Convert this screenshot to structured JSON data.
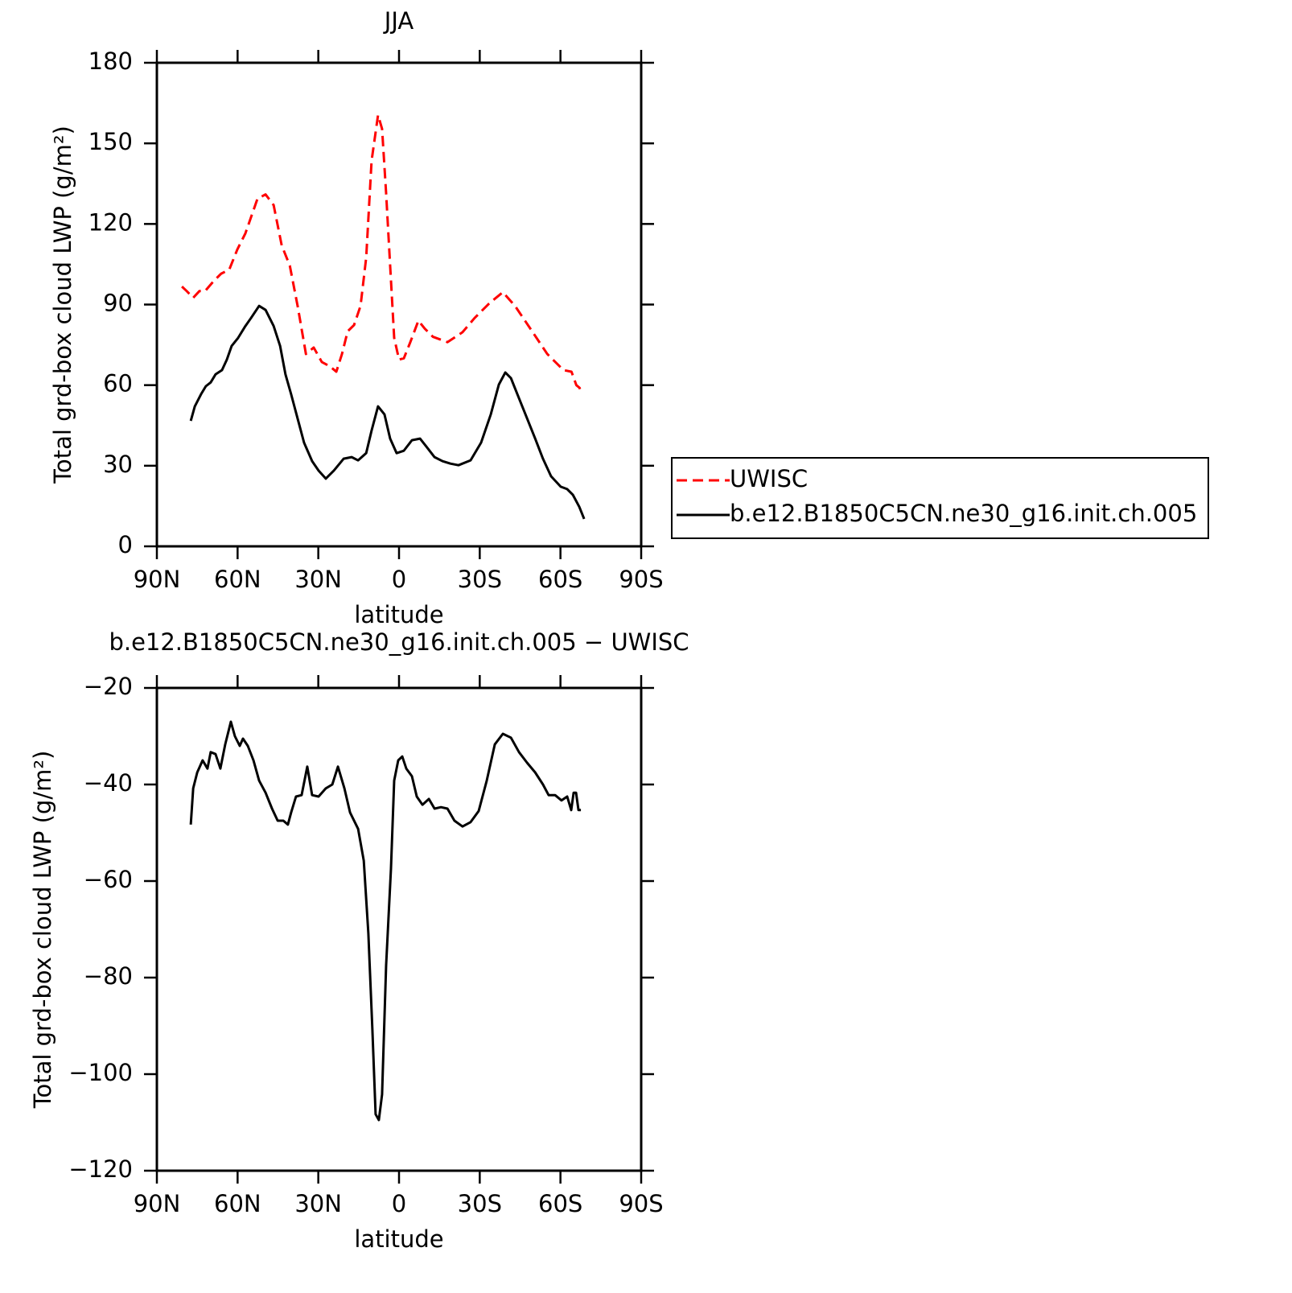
{
  "chart_data": [
    {
      "type": "line",
      "title": "JJA",
      "xlabel": "latitude",
      "ylabel": "Total grd-box cloud LWP (g/m²)",
      "xlim": [
        90,
        -90
      ],
      "xticks": [
        {
          "value": 90,
          "label": "90N"
        },
        {
          "value": 60,
          "label": "60N"
        },
        {
          "value": 30,
          "label": "30N"
        },
        0,
        {
          "value": -30,
          "label": "30S"
        },
        {
          "value": -60,
          "label": "60S"
        },
        {
          "value": -90,
          "label": "90S"
        }
      ],
      "ylim": [
        0,
        180
      ],
      "yticks": [
        0,
        30,
        60,
        90,
        120,
        150,
        180
      ],
      "legend": "right",
      "series": [
        {
          "name": "UWISC",
          "color": "#ff0000",
          "dashed": true,
          "x": [
            80.7,
            78.9,
            76.5,
            74.2,
            72.1,
            69.1,
            66.1,
            63.1,
            60.1,
            57.1,
            52.6,
            49.6,
            46.6,
            43.6,
            40.6,
            37.6,
            34.6,
            31.7,
            28.7,
            25.7,
            23.3,
            21.2,
            19.1,
            16.7,
            14.3,
            12.2,
            10.2,
            7.8,
            6.3,
            4.8,
            3.3,
            1.8,
            0.0,
            -1.8,
            -4.2,
            -7.2,
            -9.6,
            -12.6,
            -18.0,
            -23.6,
            -28.1,
            -33.5,
            -38.6,
            -43.1,
            -49.1,
            -55.1,
            -61.1,
            -64.1,
            -65.9,
            -67.1,
            -67.6
          ],
          "values": [
            96.7,
            95,
            92.5,
            95,
            95,
            98.5,
            101.5,
            103,
            110.5,
            116.5,
            129.4,
            131,
            127,
            112,
            104.5,
            89,
            71.6,
            74,
            68.6,
            67,
            65,
            71.6,
            80,
            82.4,
            89.5,
            107.5,
            143.5,
            160.5,
            155.4,
            131.5,
            104.5,
            77.6,
            69.5,
            70,
            76,
            84,
            81,
            78,
            76,
            79.7,
            85,
            90.4,
            94.6,
            89.5,
            80.6,
            71.6,
            65.6,
            65,
            60,
            59,
            57.5
          ]
        },
        {
          "name": "b.e12.B1850C5CN.ne30_g16.init.ch.005",
          "color": "#000000",
          "dashed": false,
          "x": [
            77.4,
            75.9,
            73.6,
            71.8,
            70.0,
            68.2,
            65.8,
            64.0,
            62.2,
            59.8,
            57.1,
            55.0,
            52.0,
            49.6,
            46.6,
            44.2,
            42.2,
            40.1,
            37.7,
            35.3,
            32.3,
            29.9,
            27.2,
            24.2,
            20.6,
            17.6,
            15.2,
            12.2,
            10.2,
            7.8,
            5.4,
            3.3,
            0.9,
            -1.8,
            -4.8,
            -7.8,
            -10.2,
            -13.2,
            -16.2,
            -19.1,
            -22.1,
            -26.6,
            -30.5,
            -34.1,
            -37.1,
            -39.5,
            -41.6,
            -44.6,
            -47.6,
            -50.6,
            -53.5,
            -56.5,
            -60.1,
            -62.5,
            -64.6,
            -67.0,
            -68.8
          ],
          "values": [
            46.7,
            52.1,
            56.6,
            59.6,
            61,
            64,
            65.6,
            69.5,
            74.6,
            77.6,
            82,
            85,
            89.5,
            88,
            82,
            74.6,
            64,
            56.6,
            47.6,
            38.6,
            31.7,
            28.2,
            25.2,
            28.2,
            32.6,
            33.2,
            32,
            34.7,
            43.1,
            52.1,
            49.1,
            40.1,
            34.7,
            35.6,
            39.5,
            40.1,
            37.1,
            33.2,
            31.7,
            30.8,
            30.2,
            32,
            38.6,
            49.1,
            60.2,
            64.7,
            62.6,
            55.1,
            47.6,
            40.1,
            32.6,
            26.1,
            22.2,
            21.3,
            19.2,
            14.7,
            10.2
          ]
        }
      ]
    },
    {
      "type": "line",
      "title": "b.e12.B1850C5CN.ne30_g16.init.ch.005 − UWISC",
      "xlabel": "latitude",
      "ylabel": "Total grd-box cloud LWP (g/m²)",
      "xlim": [
        90,
        -90
      ],
      "xticks": [
        {
          "value": 90,
          "label": "90N"
        },
        {
          "value": 60,
          "label": "60N"
        },
        {
          "value": 30,
          "label": "30N"
        },
        0,
        {
          "value": -30,
          "label": "30S"
        },
        {
          "value": -60,
          "label": "60S"
        },
        {
          "value": -90,
          "label": "90S"
        }
      ],
      "ylim": [
        -120,
        -20
      ],
      "yticks": [
        {
          "value": -120,
          "label": "−120"
        },
        {
          "value": -100,
          "label": "−100"
        },
        {
          "value": -80,
          "label": "−80"
        },
        {
          "value": -60,
          "label": "−60"
        },
        {
          "value": -40,
          "label": "−40"
        },
        {
          "value": -20,
          "label": "−20"
        }
      ],
      "series": [
        {
          "color": "#000000",
          "dashed": false,
          "x": [
            77.4,
            76.5,
            75.0,
            73.0,
            71.2,
            70.0,
            68.2,
            66.4,
            64.6,
            62.5,
            61.0,
            59.2,
            58.0,
            56.2,
            54.1,
            52.0,
            49.6,
            47.2,
            45.1,
            43.0,
            41.3,
            40.1,
            38.3,
            36.2,
            34.1,
            32.3,
            29.9,
            27.2,
            24.8,
            22.7,
            20.3,
            18.2,
            15.2,
            13.1,
            11.4,
            9.9,
            8.7,
            7.5,
            6.3,
            4.8,
            3.0,
            1.8,
            0.3,
            -1.2,
            -2.7,
            -4.8,
            -6.6,
            -8.7,
            -11.1,
            -13.2,
            -15.6,
            -18.0,
            -20.6,
            -23.6,
            -26.6,
            -29.6,
            -32.6,
            -35.6,
            -38.6,
            -41.6,
            -44.6,
            -47.6,
            -50.6,
            -53.5,
            -55.6,
            -58.0,
            -60.4,
            -62.5,
            -64.0,
            -64.9,
            -65.8,
            -66.7,
            -67.6
          ],
          "values": [
            -48.3,
            -40.8,
            -37.5,
            -35,
            -36.7,
            -33.3,
            -33.7,
            -36.7,
            -31.7,
            -27,
            -30,
            -32,
            -30.5,
            -32,
            -35,
            -39.2,
            -41.7,
            -45,
            -47.5,
            -47.5,
            -48.3,
            -45.8,
            -42.5,
            -42.2,
            -36.3,
            -42.2,
            -42.5,
            -40.8,
            -40,
            -36.3,
            -40.8,
            -45.8,
            -49.2,
            -55.8,
            -70.8,
            -90.8,
            -108.3,
            -109.5,
            -104.2,
            -77.5,
            -57.5,
            -39.2,
            -35,
            -34.2,
            -36.7,
            -38.3,
            -42.5,
            -44.2,
            -43,
            -45,
            -44.7,
            -45,
            -47.5,
            -48.7,
            -47.8,
            -45.5,
            -39.2,
            -31.7,
            -29.5,
            -30.3,
            -33.3,
            -35.5,
            -37.5,
            -40,
            -42.2,
            -42.2,
            -43.3,
            -42.5,
            -45.3,
            -41.7,
            -41.7,
            -45.3,
            -45.3
          ]
        }
      ]
    }
  ]
}
